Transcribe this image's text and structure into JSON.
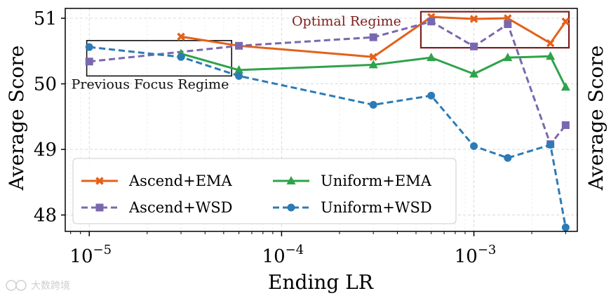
{
  "chart_data": {
    "type": "line",
    "xlabel": "Ending LR",
    "ylabel": "Average Score",
    "ylabel_right": "Average Score",
    "xscale": "log",
    "xlim": [
      7.5e-06,
      0.00345
    ],
    "ylim": [
      47.75,
      51.15
    ],
    "xticks": [
      {
        "value": 1e-05,
        "base": "10",
        "exp": "−5"
      },
      {
        "value": 0.0001,
        "base": "10",
        "exp": "−4"
      },
      {
        "value": 0.001,
        "base": "10",
        "exp": "−3"
      }
    ],
    "yticks": [
      {
        "value": 48,
        "label": "48"
      },
      {
        "value": 49,
        "label": "49"
      },
      {
        "value": 50,
        "label": "50"
      },
      {
        "value": 51,
        "label": "51"
      }
    ],
    "grid": true,
    "legend_position": "bottom-left",
    "series": [
      {
        "name": "Ascend+EMA",
        "color": "#e3611a",
        "marker": "x",
        "dash": false,
        "x": [
          3e-05,
          6e-05,
          0.0003,
          0.0006,
          0.001,
          0.0015,
          0.0025,
          0.003
        ],
        "y": [
          50.72,
          50.58,
          50.41,
          51.02,
          50.99,
          51.0,
          50.62,
          50.95
        ]
      },
      {
        "name": "Ascend+WSD",
        "color": "#7a67b0",
        "marker": "square",
        "dash": true,
        "x": [
          1e-05,
          6e-05,
          0.0003,
          0.0006,
          0.001,
          0.0015,
          0.0025,
          0.003
        ],
        "y": [
          50.34,
          50.58,
          50.71,
          50.95,
          50.57,
          50.91,
          49.08,
          49.37
        ]
      },
      {
        "name": "Uniform+EMA",
        "color": "#2ea34a",
        "marker": "triangle",
        "dash": false,
        "x": [
          3e-05,
          6e-05,
          0.0003,
          0.0006,
          0.001,
          0.0015,
          0.0025,
          0.003
        ],
        "y": [
          50.46,
          50.21,
          50.29,
          50.4,
          50.15,
          50.4,
          50.42,
          49.95
        ]
      },
      {
        "name": "Uniform+WSD",
        "color": "#2c7bb6",
        "marker": "circle",
        "dash": true,
        "x": [
          1e-05,
          3e-05,
          6e-05,
          0.0003,
          0.0006,
          0.001,
          0.0015,
          0.0025,
          0.003
        ],
        "y": [
          50.56,
          50.41,
          50.12,
          49.68,
          49.82,
          49.05,
          48.87,
          49.07,
          47.81
        ]
      }
    ],
    "annotations": [
      {
        "text": "Optimal Regime",
        "color": "#7f1d1d",
        "x_range": [
          0.00053,
          0.00312
        ],
        "y_range": [
          50.55,
          51.1
        ]
      },
      {
        "text": "Previous Focus Regime",
        "color": "#111111",
        "x_range": [
          9.7e-06,
          5.5e-05
        ],
        "y_range": [
          50.12,
          50.66
        ]
      }
    ]
  },
  "watermark": {
    "text": "大数跨境"
  }
}
